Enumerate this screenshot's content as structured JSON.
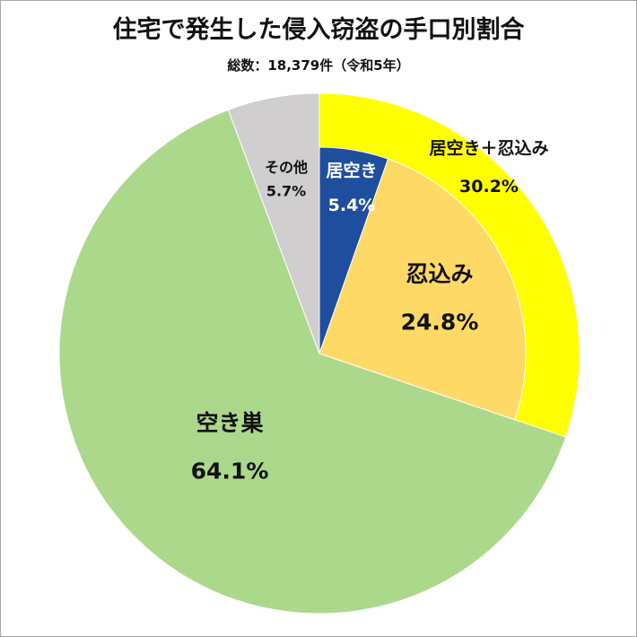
{
  "chart_data": {
    "type": "pie",
    "title": "住宅で発生した侵入窃盗の手口別割合",
    "subtitle": "総数：18,379件（令和5年）",
    "slices": [
      {
        "label": "居空き＋忍込み",
        "value": 30.2,
        "value_label": "30.2%",
        "color": "#ffff00",
        "ring": "outer"
      },
      {
        "label": "空き巣",
        "value": 64.1,
        "value_label": "64.1%",
        "color": "#acd88c",
        "ring": "outer"
      },
      {
        "label": "その他",
        "value": 5.7,
        "value_label": "5.7%",
        "color": "#d0cece",
        "ring": "outer"
      }
    ],
    "breakdown": {
      "parent": "居空き＋忍込み",
      "slices": [
        {
          "label": "居空き",
          "value": 5.4,
          "value_label": "5.4%",
          "color": "#1f4e9f"
        },
        {
          "label": "忍込み",
          "value": 24.8,
          "value_label": "24.8%",
          "color": "#ffd966"
        }
      ]
    },
    "start_angle": "12 o'clock",
    "direction": "clockwise"
  }
}
